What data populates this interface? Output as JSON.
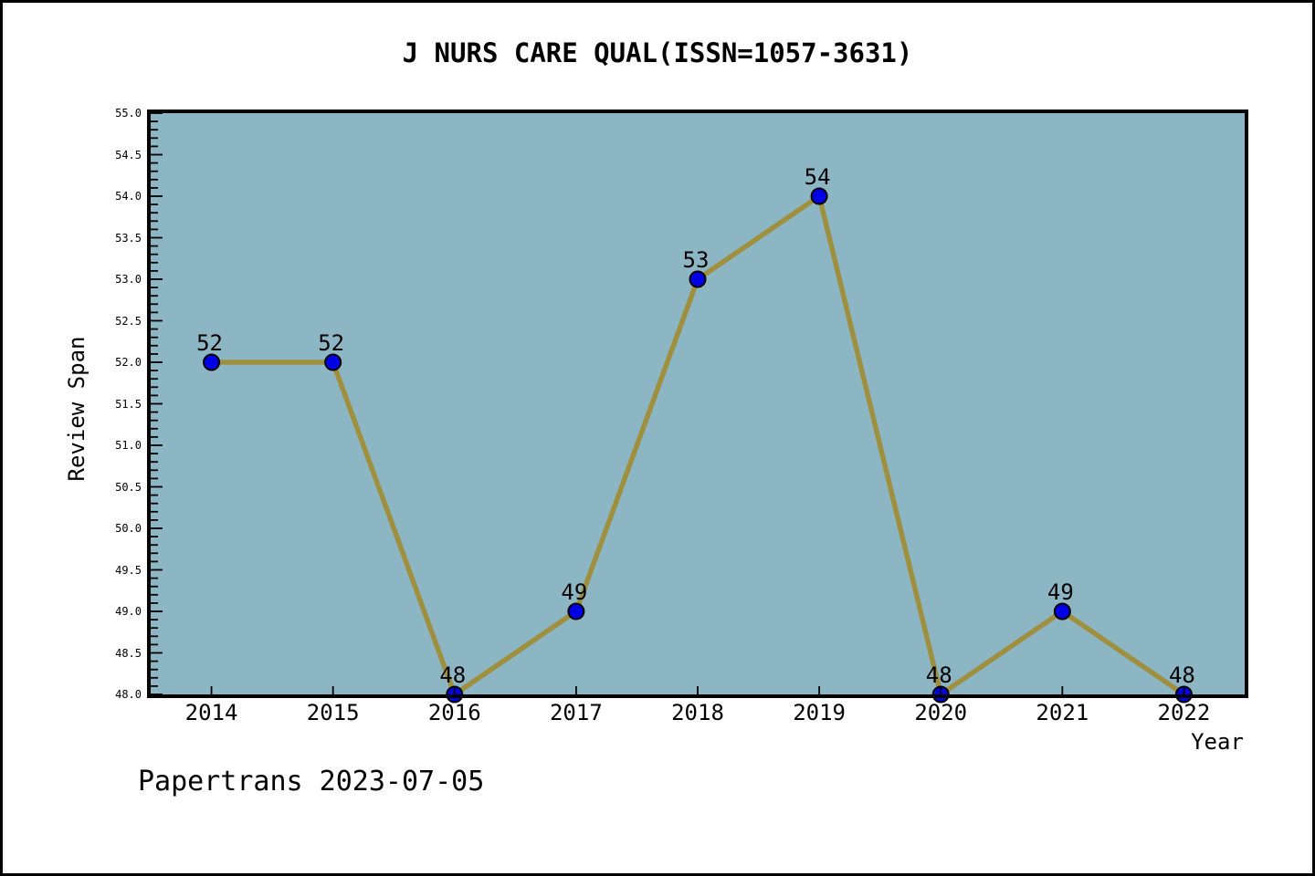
{
  "title": "J NURS CARE QUAL(ISSN=1057-3631)",
  "footer": "Papertrans 2023-07-05",
  "chart_data": {
    "type": "line",
    "title": "J NURS CARE QUAL(ISSN=1057-3631)",
    "xlabel": "Year",
    "ylabel": "Review Span",
    "x": [
      2014,
      2015,
      2016,
      2017,
      2018,
      2019,
      2020,
      2021,
      2022
    ],
    "series": [
      {
        "name": "Review Span",
        "values": [
          52,
          52,
          48,
          49,
          53,
          54,
          48,
          49,
          48
        ]
      }
    ],
    "point_labels": [
      "52",
      "52",
      "48",
      "49",
      "53",
      "54",
      "48",
      "49",
      "48"
    ],
    "xlim": [
      2013.5,
      2022.5
    ],
    "ylim": [
      48.0,
      55.0
    ],
    "ytick_major_step": 0.5,
    "ytick_minor_step": 0.1,
    "grid": "off",
    "legend": "none",
    "colors": {
      "page_bg": "#ffffff",
      "page_border": "#000000",
      "plot_bg": "#8db6c4",
      "line": "#9f9040",
      "marker": "#0000e6",
      "marker_edge": "#000000",
      "axis": "#000000",
      "text": "#000000"
    }
  }
}
